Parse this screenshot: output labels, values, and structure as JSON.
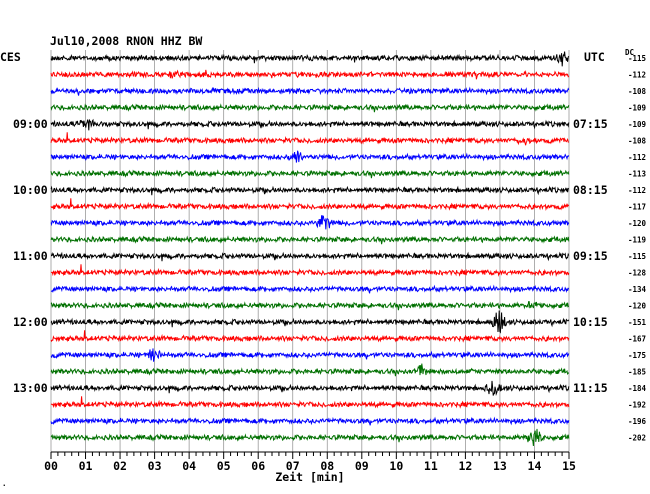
{
  "header": {
    "title": "Jul10,2008   RNON HHZ BW",
    "left_tz": "CES",
    "right_tz": "UTC",
    "dc_label": "DC"
  },
  "chart_data": {
    "type": "line",
    "title": "Jul10,2008   RNON HHZ BW",
    "xlabel": "Zeit [min]",
    "xlim": [
      0,
      15
    ],
    "x_ticks": [
      "00",
      "01",
      "02",
      "03",
      "04",
      "05",
      "06",
      "07",
      "08",
      "09",
      "10",
      "11",
      "12",
      "13",
      "14",
      "15"
    ],
    "trace_colors": [
      "#000000",
      "#ff0000",
      "#0000ff",
      "#007000"
    ],
    "traces": 24,
    "left_time_labels": [
      {
        "row": 4,
        "text": "09:00"
      },
      {
        "row": 8,
        "text": "10:00"
      },
      {
        "row": 12,
        "text": "11:00"
      },
      {
        "row": 16,
        "text": "12:00"
      },
      {
        "row": 20,
        "text": "13:00"
      }
    ],
    "right_time_labels": [
      {
        "row": 4,
        "text": "07:15"
      },
      {
        "row": 8,
        "text": "08:15"
      },
      {
        "row": 12,
        "text": "09:15"
      },
      {
        "row": 16,
        "text": "10:15"
      },
      {
        "row": 20,
        "text": "11:15"
      }
    ],
    "dc_offsets": [
      "-115",
      "-112",
      "-108",
      "-109",
      "-109",
      "-108",
      "-112",
      "-113",
      "-112",
      "-117",
      "-120",
      "-119",
      "-115",
      "-128",
      "-134",
      "-120",
      "-151",
      "-167",
      "-175",
      "-185",
      "-184",
      "-192",
      "-196",
      "-202"
    ],
    "events": [
      {
        "row": 0,
        "minute": 14.8,
        "amp": 0.9
      },
      {
        "row": 1,
        "minute": 3.6,
        "amp": 0.6
      },
      {
        "row": 4,
        "minute": 1.0,
        "amp": 0.8
      },
      {
        "row": 5,
        "minute": 13.8,
        "amp": 0.6
      },
      {
        "row": 6,
        "minute": 7.1,
        "amp": 0.7
      },
      {
        "row": 10,
        "minute": 7.9,
        "amp": 1.0
      },
      {
        "row": 15,
        "minute": 13.9,
        "amp": 0.5
      },
      {
        "row": 16,
        "minute": 13.0,
        "amp": 1.4
      },
      {
        "row": 18,
        "minute": 3.0,
        "amp": 1.0
      },
      {
        "row": 19,
        "minute": 10.7,
        "amp": 0.8
      },
      {
        "row": 20,
        "minute": 12.8,
        "amp": 0.9
      },
      {
        "row": 23,
        "minute": 14.0,
        "amp": 1.0
      }
    ]
  }
}
